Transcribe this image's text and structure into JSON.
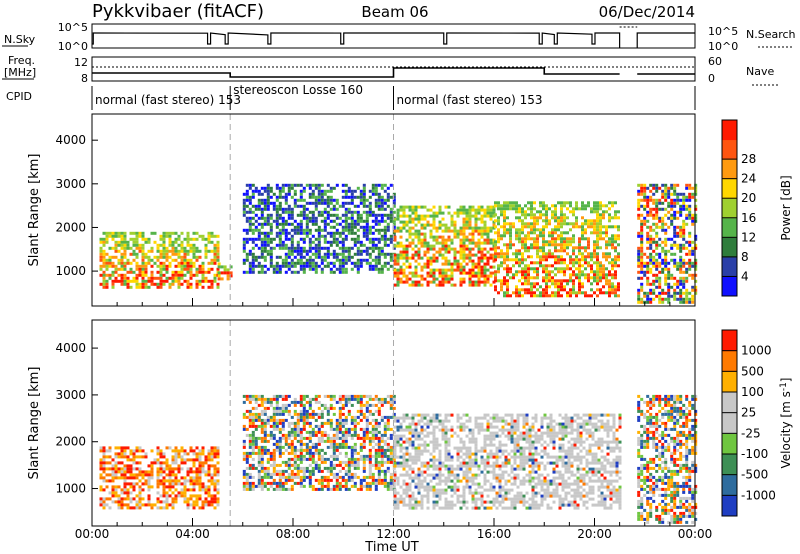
{
  "header": {
    "station": "Pykkvibaer (fitACF)",
    "beam": "Beam 06",
    "date": "06/Dec/2014"
  },
  "strips": {
    "nsky_label": "N.Sky",
    "nsearch_label": "N.Search",
    "nsky_ticks": [
      "10^5",
      "10^0"
    ],
    "freq_label": "Freq.",
    "freq_unit": "[MHz]",
    "freq_ticks": [
      "12",
      "8"
    ],
    "nave_label": "Nave",
    "nave_ticks": [
      "60",
      "0"
    ],
    "cpid_label": "CPID",
    "cpid_segments": [
      {
        "label": "normal (fast stereo) 153",
        "start": 0.0,
        "end": 5.5
      },
      {
        "label": "stereoscon Losse 160",
        "start": 5.5,
        "end": 12.0
      },
      {
        "label": "normal (fast stereo) 153",
        "start": 12.0,
        "end": 24.0
      }
    ]
  },
  "axes": {
    "xlabel": "Time UT",
    "x_ticks": [
      "00:00",
      "04:00",
      "08:00",
      "12:00",
      "16:00",
      "20:00",
      "00:00"
    ],
    "ylabel": "Slant Range [km]",
    "y_ticks": [
      "1000",
      "2000",
      "3000",
      "4000"
    ]
  },
  "power_bar": {
    "label": "Power [dB]",
    "ticks": [
      "4",
      "8",
      "12",
      "16",
      "20",
      "24",
      "28"
    ],
    "colors": [
      "#1010ff",
      "#2a3fa8",
      "#2f7d3c",
      "#55b44a",
      "#9fd030",
      "#ffd700",
      "#ff9a10",
      "#ff5510",
      "#ff1a00"
    ]
  },
  "velocity_bar": {
    "label": "Velocity [m s",
    "label_sup": "-1",
    "label_close": "]",
    "ticks": [
      "1000",
      "500",
      "100",
      "25",
      "-25",
      "-100",
      "-500",
      "-1000"
    ],
    "colors": [
      "#1f3ec2",
      "#2e6c9e",
      "#3d8f55",
      "#6fc640",
      "#c8c8c8",
      "#c8c8c8",
      "#ffb000",
      "#ff7a00",
      "#ff1a00"
    ]
  },
  "chart_data": [
    {
      "type": "heatmap",
      "title": "Power",
      "xlabel": "Time UT",
      "ylabel": "Slant Range [km]",
      "x_range_hours": [
        0,
        24
      ],
      "y_range_km": [
        200,
        4600
      ],
      "colorbar": {
        "label": "Power [dB]",
        "range": [
          0,
          32
        ],
        "ticks": [
          4,
          8,
          12,
          16,
          20,
          24,
          28
        ]
      },
      "grid": false,
      "regions": [
        {
          "t0": 0.3,
          "t1": 5.0,
          "r0": 600,
          "r1": 1900,
          "level": "high"
        },
        {
          "t0": 5.0,
          "t1": 5.5,
          "r0": 850,
          "r1": 1200,
          "level": "high"
        },
        {
          "t0": 6.0,
          "t1": 12.0,
          "r0": 1000,
          "r1": 3000,
          "level": "low"
        },
        {
          "t0": 12.0,
          "t1": 16.0,
          "r0": 700,
          "r1": 2500,
          "level": "high"
        },
        {
          "t0": 16.0,
          "t1": 21.0,
          "r0": 400,
          "r1": 2600,
          "level": "high"
        },
        {
          "t0": 21.7,
          "t1": 24.0,
          "r0": 300,
          "r1": 3000,
          "level": "mixed"
        }
      ],
      "data_gap_hours": [
        21.0,
        21.7
      ]
    },
    {
      "type": "heatmap",
      "title": "Velocity",
      "xlabel": "Time UT",
      "ylabel": "Slant Range [km]",
      "x_range_hours": [
        0,
        24
      ],
      "y_range_km": [
        200,
        4600
      ],
      "colorbar": {
        "label": "Velocity [m s^-1]",
        "range": [
          -1000,
          1000
        ],
        "ticks": [
          1000,
          500,
          100,
          25,
          -25,
          -100,
          -500,
          -1000
        ]
      },
      "grid": false,
      "regions": [
        {
          "t0": 0.3,
          "t1": 5.0,
          "r0": 600,
          "r1": 1900,
          "sign": "negative"
        },
        {
          "t0": 6.0,
          "t1": 12.0,
          "r0": 1000,
          "r1": 3000,
          "sign": "mixed"
        },
        {
          "t0": 12.0,
          "t1": 21.0,
          "r0": 600,
          "r1": 2600,
          "sign": "near-zero"
        },
        {
          "t0": 21.7,
          "t1": 24.0,
          "r0": 300,
          "r1": 3000,
          "sign": "mixed"
        }
      ],
      "data_gap_hours": [
        21.0,
        21.7
      ]
    }
  ]
}
